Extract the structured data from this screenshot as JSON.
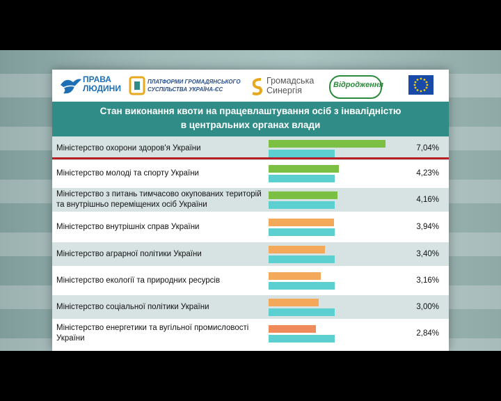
{
  "logos": {
    "prava_line1": "ПРАВА",
    "prava_line2": "ЛЮДИНИ",
    "platform_line1": "ПЛАТФОРМИ ГРОМАДЯНСЬКОГО",
    "platform_line2": "СУСПІЛЬСТВА УКРАЇНА-ЄС",
    "synergy_line1": "Громадська",
    "synergy_line2": "Синергія",
    "vidrodzhennia": "Відродження"
  },
  "chart_data": {
    "type": "bar",
    "title": "Стан виконання квоти на працевлаштування осіб з інвалідністю в центральних органах влади",
    "title_lines": [
      "Стан виконання квоти на працевлаштування осіб з інвалідністю",
      "в центральних органах влади"
    ],
    "categories": [
      "Міністерство охорони здоров'я України",
      "Міністерство молоді та спорту України",
      "Міністерство з питань тимчасово окупованих територій та внутрішньо переміщених осіб України",
      "Міністерство внутрішніх справ України",
      "Міністерство аграрної політики України",
      "Міністерство екології та природних ресурсів",
      "Міністерство соціальної політики України",
      "Міністерство енергетики та вугільної промисловості України"
    ],
    "values": [
      7.04,
      4.23,
      4.16,
      3.94,
      3.4,
      3.16,
      3.0,
      2.84
    ],
    "value_labels": [
      "7,04%",
      "4,23%",
      "4,16%",
      "3,94%",
      "3,40%",
      "3,16%",
      "3,00%",
      "2,84%"
    ],
    "bar_colors": [
      "#7bc043",
      "#7bc043",
      "#7bc043",
      "#f4a95a",
      "#f4a95a",
      "#f4a95a",
      "#f4a95a",
      "#ef8a5a"
    ],
    "quota_bar_color": "#5ccfd0",
    "quota_value": 4.0,
    "xlim": [
      0,
      8.6
    ]
  },
  "colors": {
    "header": "#2f8c87",
    "row_odd": "#ffffff",
    "row_even": "#d6e3e2",
    "accent_line": "#b81e26"
  }
}
